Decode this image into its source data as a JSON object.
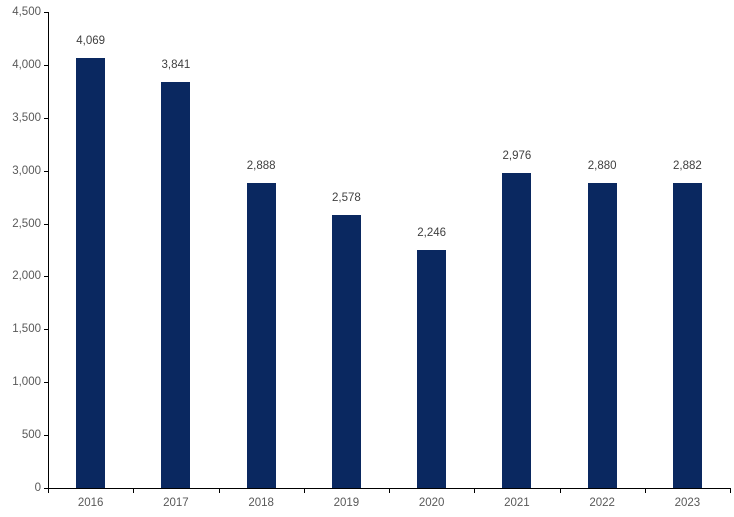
{
  "chart_data": {
    "type": "bar",
    "title": "",
    "xlabel": "",
    "ylabel": "",
    "categories": [
      "2016",
      "2017",
      "2018",
      "2019",
      "2020",
      "2021",
      "2022",
      "2023"
    ],
    "values": [
      4069,
      3841,
      2888,
      2578,
      2246,
      2976,
      2880,
      2882
    ],
    "value_labels": [
      "4,069",
      "3,841",
      "2,888",
      "2,578",
      "2,246",
      "2,976",
      "2,880",
      "2,882"
    ],
    "ylim": [
      0,
      4500
    ],
    "ytick_interval": 500,
    "ytick_labels": [
      "0",
      "500",
      "1,000",
      "1,500",
      "2,000",
      "2,500",
      "3,000",
      "3,500",
      "4,000",
      "4,500"
    ],
    "grid": "off",
    "legend": "none",
    "data_labels": "above-bars",
    "colors": {
      "bar": "#0a2860",
      "value_label": "#404040",
      "axis_tick_label": "#595959",
      "axis_line": "#000000",
      "background": "#ffffff"
    }
  }
}
